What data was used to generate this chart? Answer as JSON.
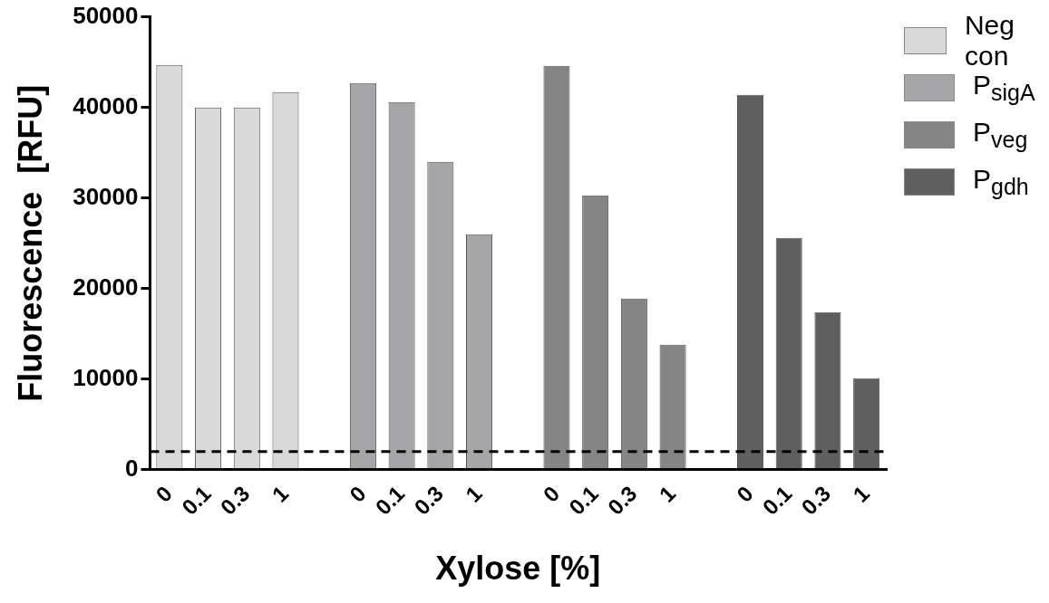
{
  "chart_data": {
    "type": "bar",
    "xlabel": "Xylose [%]",
    "ylabel": "Fluorescence  [RFU]",
    "categories": [
      "0",
      "0.1",
      "0.3",
      "1",
      null,
      "0",
      "0.1",
      "0.3",
      "1",
      null,
      "0",
      "0.1",
      "0.3",
      "1",
      null,
      "0",
      "0.1",
      "0.3",
      "1"
    ],
    "series": [
      {
        "name": "Neg con",
        "color": "#d9d9d9",
        "values": [
          44700,
          40000,
          40000,
          41700,
          null,
          null,
          null,
          null,
          null,
          null,
          null,
          null,
          null,
          null,
          null,
          null,
          null,
          null,
          null
        ]
      },
      {
        "name": "P$_{sigA}$",
        "color": "#a6a6a8",
        "values": [
          null,
          null,
          null,
          null,
          null,
          42700,
          40600,
          34000,
          26000,
          null,
          null,
          null,
          null,
          null,
          null,
          null,
          null,
          null,
          null
        ]
      },
      {
        "name": "P$_{veg}$",
        "color": "#858585",
        "values": [
          null,
          null,
          null,
          null,
          null,
          null,
          null,
          null,
          null,
          null,
          44600,
          30300,
          18900,
          13800,
          null,
          null,
          null,
          null,
          null
        ]
      },
      {
        "name": "P$_{gdh}$",
        "color": "#5f5f5f",
        "values": [
          null,
          null,
          null,
          null,
          null,
          null,
          null,
          null,
          null,
          null,
          null,
          null,
          null,
          null,
          null,
          41400,
          25600,
          17400,
          10100
        ]
      }
    ],
    "ylim": [
      0,
      50000
    ],
    "yticks": [
      0,
      10000,
      20000,
      30000,
      40000,
      50000
    ],
    "grid": false,
    "legend": "right",
    "ref_lines": [
      {
        "axis": "y",
        "value": 2000,
        "line_style": "dashed",
        "color": "#000000"
      }
    ]
  }
}
